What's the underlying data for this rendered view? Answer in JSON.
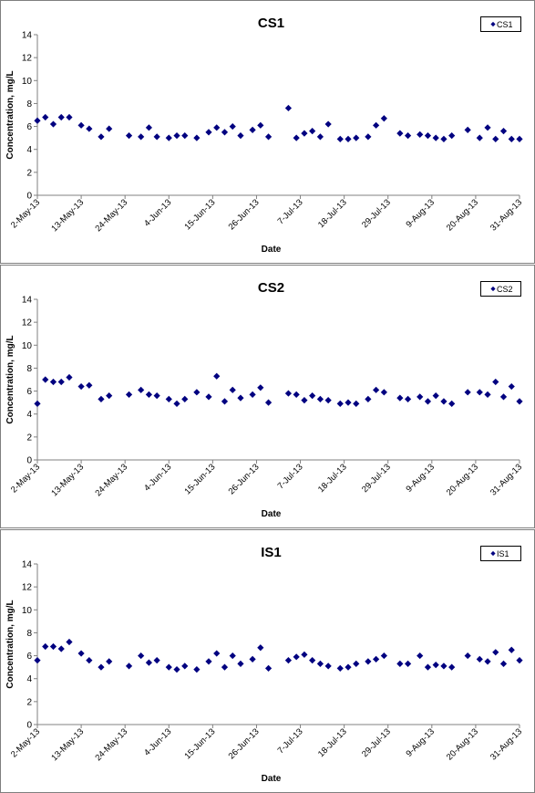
{
  "colors": {
    "marker": "#000080",
    "axis": "#808080",
    "panel_border": "#7f7f7f",
    "text": "#000000"
  },
  "chart_data": [
    {
      "type": "scatter",
      "title": "CS1",
      "xlabel": "Date",
      "ylabel": "Concentration, mg/L",
      "ylim": [
        0,
        14
      ],
      "yticks": [
        0,
        2,
        4,
        6,
        8,
        10,
        12,
        14
      ],
      "xlim": [
        "2013-05-02",
        "2013-08-31"
      ],
      "xtick_labels": [
        "2-May-13",
        "13-May-13",
        "24-May-13",
        "4-Jun-13",
        "15-Jun-13",
        "26-Jun-13",
        "7-Jul-13",
        "18-Jul-13",
        "29-Jul-13",
        "9-Aug-13",
        "20-Aug-13",
        "31-Aug-13"
      ],
      "legend": "top-right",
      "grid": false,
      "series": [
        {
          "name": "CS1",
          "points": [
            [
              "2013-05-02",
              6.5
            ],
            [
              "2013-05-04",
              6.8
            ],
            [
              "2013-05-06",
              6.2
            ],
            [
              "2013-05-08",
              6.8
            ],
            [
              "2013-05-10",
              6.8
            ],
            [
              "2013-05-13",
              6.1
            ],
            [
              "2013-05-15",
              5.8
            ],
            [
              "2013-05-18",
              5.1
            ],
            [
              "2013-05-20",
              5.8
            ],
            [
              "2013-05-25",
              5.2
            ],
            [
              "2013-05-28",
              5.1
            ],
            [
              "2013-05-30",
              5.9
            ],
            [
              "2013-06-01",
              5.1
            ],
            [
              "2013-06-04",
              5.0
            ],
            [
              "2013-06-06",
              5.2
            ],
            [
              "2013-06-08",
              5.2
            ],
            [
              "2013-06-11",
              5.0
            ],
            [
              "2013-06-14",
              5.5
            ],
            [
              "2013-06-16",
              5.9
            ],
            [
              "2013-06-18",
              5.5
            ],
            [
              "2013-06-20",
              6.0
            ],
            [
              "2013-06-22",
              5.2
            ],
            [
              "2013-06-25",
              5.7
            ],
            [
              "2013-06-27",
              6.1
            ],
            [
              "2013-06-29",
              5.1
            ],
            [
              "2013-07-04",
              7.6
            ],
            [
              "2013-07-06",
              5.0
            ],
            [
              "2013-07-08",
              5.4
            ],
            [
              "2013-07-10",
              5.6
            ],
            [
              "2013-07-12",
              5.1
            ],
            [
              "2013-07-14",
              6.2
            ],
            [
              "2013-07-17",
              4.9
            ],
            [
              "2013-07-19",
              4.9
            ],
            [
              "2013-07-21",
              5.0
            ],
            [
              "2013-07-24",
              5.1
            ],
            [
              "2013-07-26",
              6.1
            ],
            [
              "2013-07-28",
              6.7
            ],
            [
              "2013-08-01",
              5.4
            ],
            [
              "2013-08-03",
              5.2
            ],
            [
              "2013-08-06",
              5.3
            ],
            [
              "2013-08-08",
              5.2
            ],
            [
              "2013-08-10",
              5.0
            ],
            [
              "2013-08-12",
              4.9
            ],
            [
              "2013-08-14",
              5.2
            ],
            [
              "2013-08-18",
              5.7
            ],
            [
              "2013-08-21",
              5.0
            ],
            [
              "2013-08-23",
              5.9
            ],
            [
              "2013-08-25",
              4.9
            ],
            [
              "2013-08-27",
              5.6
            ],
            [
              "2013-08-29",
              4.9
            ],
            [
              "2013-08-31",
              4.9
            ]
          ]
        }
      ]
    },
    {
      "type": "scatter",
      "title": "CS2",
      "xlabel": "Date",
      "ylabel": "Concentration, mg/L",
      "ylim": [
        0,
        14
      ],
      "yticks": [
        0,
        2,
        4,
        6,
        8,
        10,
        12,
        14
      ],
      "xlim": [
        "2013-05-02",
        "2013-08-31"
      ],
      "xtick_labels": [
        "2-May-13",
        "13-May-13",
        "24-May-13",
        "4-Jun-13",
        "15-Jun-13",
        "26-Jun-13",
        "7-Jul-13",
        "18-Jul-13",
        "29-Jul-13",
        "9-Aug-13",
        "20-Aug-13",
        "31-Aug-13"
      ],
      "legend": "top-right",
      "grid": false,
      "series": [
        {
          "name": "CS2",
          "points": [
            [
              "2013-05-02",
              4.9
            ],
            [
              "2013-05-04",
              7.0
            ],
            [
              "2013-05-06",
              6.8
            ],
            [
              "2013-05-08",
              6.8
            ],
            [
              "2013-05-10",
              7.2
            ],
            [
              "2013-05-13",
              6.4
            ],
            [
              "2013-05-15",
              6.5
            ],
            [
              "2013-05-18",
              5.3
            ],
            [
              "2013-05-20",
              5.6
            ],
            [
              "2013-05-25",
              5.7
            ],
            [
              "2013-05-28",
              6.1
            ],
            [
              "2013-05-30",
              5.7
            ],
            [
              "2013-06-01",
              5.6
            ],
            [
              "2013-06-04",
              5.3
            ],
            [
              "2013-06-06",
              4.9
            ],
            [
              "2013-06-08",
              5.3
            ],
            [
              "2013-06-11",
              5.9
            ],
            [
              "2013-06-14",
              5.5
            ],
            [
              "2013-06-16",
              7.3
            ],
            [
              "2013-06-18",
              5.1
            ],
            [
              "2013-06-20",
              6.1
            ],
            [
              "2013-06-22",
              5.4
            ],
            [
              "2013-06-25",
              5.7
            ],
            [
              "2013-06-27",
              6.3
            ],
            [
              "2013-06-29",
              5.0
            ],
            [
              "2013-07-04",
              5.8
            ],
            [
              "2013-07-06",
              5.7
            ],
            [
              "2013-07-08",
              5.2
            ],
            [
              "2013-07-10",
              5.6
            ],
            [
              "2013-07-12",
              5.3
            ],
            [
              "2013-07-14",
              5.2
            ],
            [
              "2013-07-17",
              4.9
            ],
            [
              "2013-07-19",
              5.0
            ],
            [
              "2013-07-21",
              4.9
            ],
            [
              "2013-07-24",
              5.3
            ],
            [
              "2013-07-26",
              6.1
            ],
            [
              "2013-07-28",
              5.9
            ],
            [
              "2013-08-01",
              5.4
            ],
            [
              "2013-08-03",
              5.3
            ],
            [
              "2013-08-06",
              5.5
            ],
            [
              "2013-08-08",
              5.1
            ],
            [
              "2013-08-10",
              5.6
            ],
            [
              "2013-08-12",
              5.1
            ],
            [
              "2013-08-14",
              4.9
            ],
            [
              "2013-08-18",
              5.9
            ],
            [
              "2013-08-21",
              5.9
            ],
            [
              "2013-08-23",
              5.7
            ],
            [
              "2013-08-25",
              6.8
            ],
            [
              "2013-08-27",
              5.5
            ],
            [
              "2013-08-29",
              6.4
            ],
            [
              "2013-08-31",
              5.1
            ]
          ]
        }
      ]
    },
    {
      "type": "scatter",
      "title": "IS1",
      "xlabel": "Date",
      "ylabel": "Concentration, mg/L",
      "ylim": [
        0,
        14
      ],
      "yticks": [
        0,
        2,
        4,
        6,
        8,
        10,
        12,
        14
      ],
      "xlim": [
        "2013-05-02",
        "2013-08-31"
      ],
      "xtick_labels": [
        "2-May-13",
        "13-May-13",
        "24-May-13",
        "4-Jun-13",
        "15-Jun-13",
        "26-Jun-13",
        "7-Jul-13",
        "18-Jul-13",
        "29-Jul-13",
        "9-Aug-13",
        "20-Aug-13",
        "31-Aug-13"
      ],
      "legend": "top-right",
      "grid": false,
      "series": [
        {
          "name": "IS1",
          "points": [
            [
              "2013-05-02",
              5.6
            ],
            [
              "2013-05-04",
              6.8
            ],
            [
              "2013-05-06",
              6.8
            ],
            [
              "2013-05-08",
              6.6
            ],
            [
              "2013-05-10",
              7.2
            ],
            [
              "2013-05-13",
              6.2
            ],
            [
              "2013-05-15",
              5.6
            ],
            [
              "2013-05-18",
              5.0
            ],
            [
              "2013-05-20",
              5.5
            ],
            [
              "2013-05-25",
              5.1
            ],
            [
              "2013-05-28",
              6.0
            ],
            [
              "2013-05-30",
              5.4
            ],
            [
              "2013-06-01",
              5.6
            ],
            [
              "2013-06-04",
              5.0
            ],
            [
              "2013-06-06",
              4.8
            ],
            [
              "2013-06-08",
              5.1
            ],
            [
              "2013-06-11",
              4.8
            ],
            [
              "2013-06-14",
              5.5
            ],
            [
              "2013-06-16",
              6.2
            ],
            [
              "2013-06-18",
              5.0
            ],
            [
              "2013-06-20",
              6.0
            ],
            [
              "2013-06-22",
              5.3
            ],
            [
              "2013-06-25",
              5.7
            ],
            [
              "2013-06-27",
              6.7
            ],
            [
              "2013-06-29",
              4.9
            ],
            [
              "2013-07-04",
              5.6
            ],
            [
              "2013-07-06",
              5.9
            ],
            [
              "2013-07-08",
              6.1
            ],
            [
              "2013-07-10",
              5.6
            ],
            [
              "2013-07-12",
              5.3
            ],
            [
              "2013-07-14",
              5.1
            ],
            [
              "2013-07-17",
              4.9
            ],
            [
              "2013-07-19",
              5.0
            ],
            [
              "2013-07-21",
              5.3
            ],
            [
              "2013-07-24",
              5.5
            ],
            [
              "2013-07-26",
              5.7
            ],
            [
              "2013-07-28",
              6.0
            ],
            [
              "2013-08-01",
              5.3
            ],
            [
              "2013-08-03",
              5.3
            ],
            [
              "2013-08-06",
              6.0
            ],
            [
              "2013-08-08",
              5.0
            ],
            [
              "2013-08-10",
              5.2
            ],
            [
              "2013-08-12",
              5.1
            ],
            [
              "2013-08-14",
              5.0
            ],
            [
              "2013-08-18",
              6.0
            ],
            [
              "2013-08-21",
              5.7
            ],
            [
              "2013-08-23",
              5.5
            ],
            [
              "2013-08-25",
              6.3
            ],
            [
              "2013-08-27",
              5.3
            ],
            [
              "2013-08-29",
              6.5
            ],
            [
              "2013-08-31",
              5.6
            ]
          ]
        }
      ]
    }
  ]
}
